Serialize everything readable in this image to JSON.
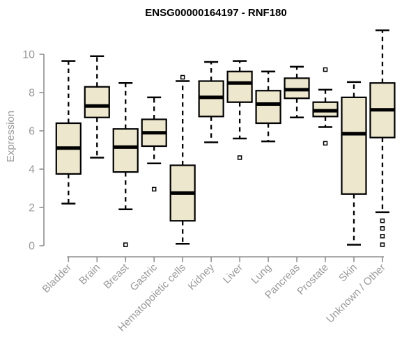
{
  "chart_data": {
    "type": "boxplot",
    "title": "ENSG00000164197 - RNF180",
    "xlabel": "",
    "ylabel": "Expression",
    "yticks": [
      0,
      2,
      4,
      6,
      8,
      10
    ],
    "ylim": [
      0,
      11.4
    ],
    "grid": false,
    "legend": "none",
    "categories": [
      "Bladder",
      "Brain",
      "Breast",
      "Gastric",
      "Hematopoietic cells",
      "Kidney",
      "Liver",
      "Lung",
      "Pancreas",
      "Prostate",
      "Skin",
      "Unknown / Other"
    ],
    "series": [
      {
        "category": "Bladder",
        "whisker_low": 2.2,
        "q1": 3.75,
        "median": 5.1,
        "q3": 6.4,
        "whisker_high": 9.65,
        "outliers": []
      },
      {
        "category": "Brain",
        "whisker_low": 4.6,
        "q1": 6.7,
        "median": 7.3,
        "q3": 8.3,
        "whisker_high": 9.9,
        "outliers": []
      },
      {
        "category": "Breast",
        "whisker_low": 1.9,
        "q1": 3.85,
        "median": 5.15,
        "q3": 6.1,
        "whisker_high": 8.5,
        "outliers": [
          0.05
        ]
      },
      {
        "category": "Gastric",
        "whisker_low": 4.3,
        "q1": 5.2,
        "median": 5.9,
        "q3": 6.6,
        "whisker_high": 7.75,
        "outliers": [
          2.95
        ]
      },
      {
        "category": "Hematopoietic cells",
        "whisker_low": 0.1,
        "q1": 1.3,
        "median": 2.75,
        "q3": 4.2,
        "whisker_high": 8.6,
        "outliers": [
          8.8
        ]
      },
      {
        "category": "Kidney",
        "whisker_low": 5.4,
        "q1": 6.75,
        "median": 7.75,
        "q3": 8.6,
        "whisker_high": 9.6,
        "outliers": []
      },
      {
        "category": "Liver",
        "whisker_low": 5.6,
        "q1": 7.5,
        "median": 8.5,
        "q3": 9.1,
        "whisker_high": 9.65,
        "outliers": [
          4.6
        ]
      },
      {
        "category": "Lung",
        "whisker_low": 5.45,
        "q1": 6.4,
        "median": 7.4,
        "q3": 8.1,
        "whisker_high": 9.1,
        "outliers": []
      },
      {
        "category": "Pancreas",
        "whisker_low": 6.7,
        "q1": 7.7,
        "median": 8.15,
        "q3": 8.75,
        "whisker_high": 9.35,
        "outliers": []
      },
      {
        "category": "Prostate",
        "whisker_low": 6.2,
        "q1": 6.75,
        "median": 7.05,
        "q3": 7.5,
        "whisker_high": 8.15,
        "outliers": [
          9.2,
          5.35
        ]
      },
      {
        "category": "Skin",
        "whisker_low": 0.05,
        "q1": 2.7,
        "median": 5.85,
        "q3": 7.75,
        "whisker_high": 8.55,
        "outliers": []
      },
      {
        "category": "Unknown / Other",
        "whisker_low": 1.75,
        "q1": 5.65,
        "median": 7.1,
        "q3": 8.5,
        "whisker_high": 11.25,
        "outliers": [
          1.3,
          0.9,
          0.5,
          0.05
        ]
      }
    ],
    "colors": {
      "background": "#FFFFFF",
      "box_fill": "#EDE8CD",
      "box_border": "#000000",
      "median": "#000000",
      "whisker": "#000000",
      "outlier_fill": "#FFFFFF",
      "axis": "#8F8F8F",
      "tick_label": "#9A9A9A",
      "title": "#000000"
    }
  }
}
